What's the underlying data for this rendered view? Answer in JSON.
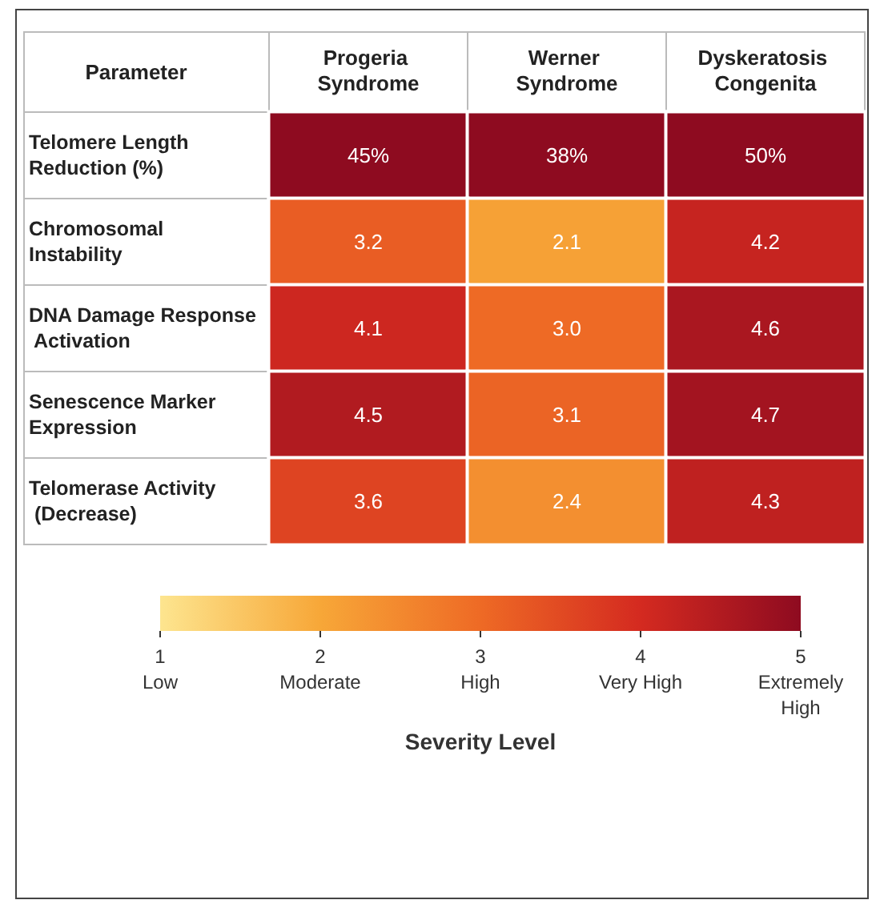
{
  "chart_data": {
    "type": "heatmap",
    "ylabel": "Parameter",
    "categories": [
      "Progeria Syndrome",
      "Werner Syndrome",
      "Dyskeratosis Congenita"
    ],
    "y_categories": [
      "Telomere Length Reduction (%)",
      "Chromosomal Instability",
      "DNA Damage Response Activation",
      "Senescence Marker Expression",
      "Telomerase Activity (Decrease)"
    ],
    "cells": [
      [
        45,
        38,
        50
      ],
      [
        3.2,
        2.1,
        4.2
      ],
      [
        4.1,
        3.0,
        4.6
      ],
      [
        4.5,
        3.1,
        4.7
      ],
      [
        3.6,
        2.4,
        4.3
      ]
    ],
    "cell_labels": [
      [
        "45%",
        "38%",
        "50%"
      ],
      [
        "3.2",
        "2.1",
        "4.2"
      ],
      [
        "4.1",
        "3.0",
        "4.6"
      ],
      [
        "4.5",
        "3.1",
        "4.7"
      ],
      [
        "3.6",
        "2.4",
        "4.3"
      ]
    ],
    "colors": [
      "#fde58f",
      "#f7a738",
      "#ee6a25",
      "#d42a20",
      "#8e0b20"
    ],
    "clim": [
      1,
      5
    ],
    "cticks": [
      {
        "value": 1,
        "label": "1\nLow"
      },
      {
        "value": 2,
        "label": "2\nModerate"
      },
      {
        "value": 3,
        "label": "3\nHigh"
      },
      {
        "value": 4,
        "label": "4\nVery High"
      },
      {
        "value": 5,
        "label": "5\nExtremely\nHigh"
      }
    ],
    "clabel": "Severity Level"
  }
}
